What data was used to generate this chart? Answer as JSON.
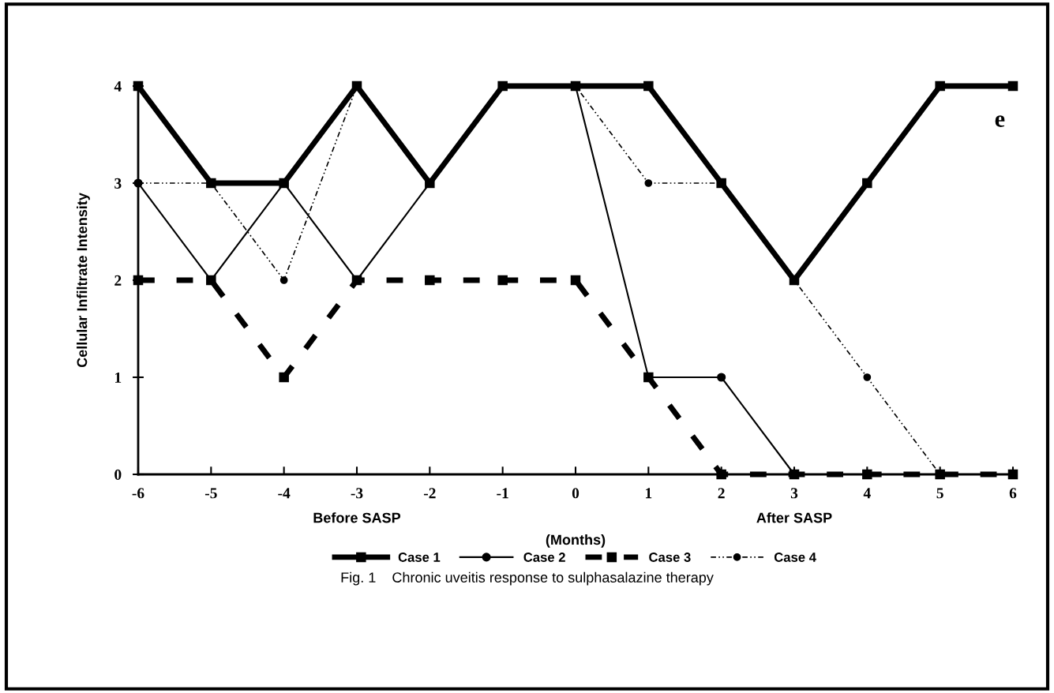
{
  "chart_data": {
    "type": "line",
    "ylabel": "Cellular Infiltrate Intensity",
    "xlabel": "(Months)",
    "x": [
      -6,
      -5,
      -4,
      -3,
      -2,
      -1,
      0,
      1,
      2,
      3,
      4,
      5,
      6
    ],
    "series": [
      {
        "name": "Case 1",
        "color": "#000000",
        "marker": "square",
        "line_style": "solid",
        "values": [
          4,
          3,
          3,
          4,
          3,
          4,
          4,
          4,
          3,
          2,
          3,
          4,
          4
        ]
      },
      {
        "name": "Case 2",
        "color": "#000000",
        "marker": "circle",
        "line_style": "solid",
        "values": [
          3,
          2,
          3,
          2,
          3,
          4,
          4,
          1,
          1,
          0,
          0,
          0,
          0
        ]
      },
      {
        "name": "Case 3",
        "color": "#000000",
        "marker": "square",
        "line_style": "dashed",
        "values": [
          2,
          2,
          1,
          2,
          2,
          2,
          2,
          1,
          0,
          0,
          0,
          0,
          0
        ]
      },
      {
        "name": "Case 4",
        "color": "#000000",
        "marker": "circle",
        "line_style": "dashdot",
        "values": [
          3,
          3,
          2,
          4,
          3,
          4,
          4,
          3,
          3,
          2,
          1,
          0,
          0
        ]
      }
    ],
    "xlim": [
      -6,
      6
    ],
    "ylim": [
      0,
      4
    ],
    "xticks": [
      -6,
      -5,
      -4,
      -3,
      -2,
      -1,
      0,
      1,
      2,
      3,
      4,
      5,
      6
    ],
    "yticks": [
      0,
      1,
      2,
      3,
      4
    ],
    "grid": false,
    "legend": "bottom",
    "annotations": [
      "Before SASP",
      "After SASP",
      "e",
      "Fig. 1    Chronic uveitis response to sulphasalazine therapy"
    ]
  }
}
